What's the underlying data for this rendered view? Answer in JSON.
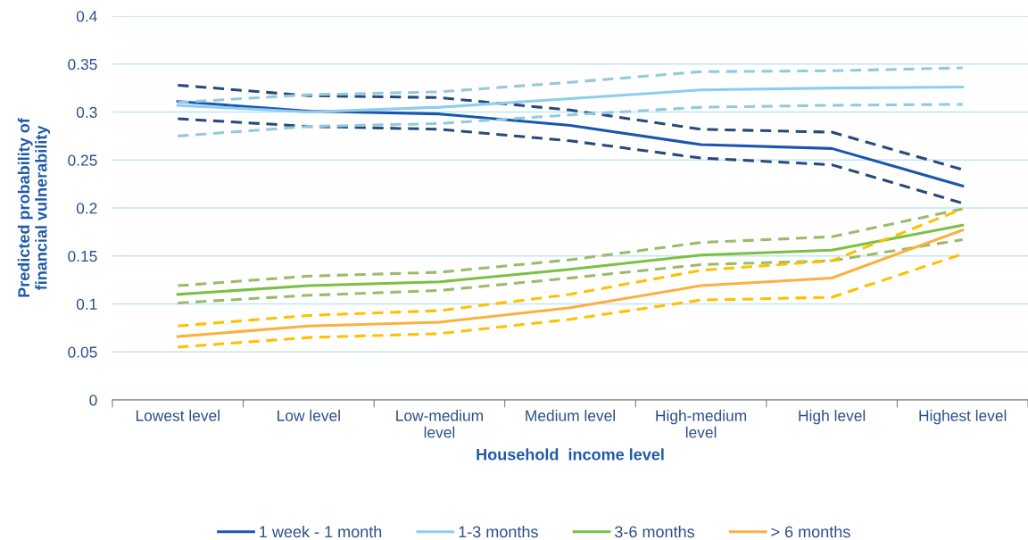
{
  "chart_data": {
    "type": "line",
    "xlabel": "Household  income level",
    "ylabel": "Predicted probability of\nfinancial vulnerability",
    "categories": [
      "Lowest level",
      "Low level",
      "Low-medium\nlevel",
      "Medium level",
      "High-medium\nlevel",
      "High level",
      "Highest level"
    ],
    "ylim": [
      0,
      0.4
    ],
    "yticks": [
      {
        "value": 0,
        "label": "0"
      },
      0.05,
      0.1,
      0.15,
      0.2,
      0.25,
      0.3,
      0.35,
      0.4
    ],
    "grid": "y",
    "legend": "bottom",
    "marker": "none",
    "series": [
      {
        "name": "1 week - 1 month",
        "color": "#1a56b0",
        "line_style": "solid",
        "values": [
          0.311,
          0.301,
          0.298,
          0.286,
          0.266,
          0.262,
          0.223
        ]
      },
      {
        "color": "#264a7a",
        "line_style": "dashed",
        "values": [
          0.328,
          0.317,
          0.315,
          0.302,
          0.282,
          0.279,
          0.24
        ]
      },
      {
        "color": "#264a7a",
        "line_style": "dashed",
        "values": [
          0.293,
          0.285,
          0.282,
          0.27,
          0.252,
          0.245,
          0.205
        ]
      },
      {
        "name": "1-3 months",
        "color": "#8dcdf0",
        "line_style": "solid",
        "values": [
          0.307,
          0.3,
          0.305,
          0.314,
          0.323,
          0.325,
          0.326
        ]
      },
      {
        "color": "#93c9dc",
        "line_style": "dashed",
        "values": [
          0.31,
          0.318,
          0.321,
          0.331,
          0.342,
          0.343,
          0.346
        ]
      },
      {
        "color": "#93c9dc",
        "line_style": "dashed",
        "values": [
          0.275,
          0.285,
          0.288,
          0.297,
          0.305,
          0.307,
          0.308
        ]
      },
      {
        "name": "3-6 months",
        "color": "#7ac143",
        "line_style": "solid",
        "values": [
          0.11,
          0.119,
          0.123,
          0.136,
          0.151,
          0.156,
          0.182
        ]
      },
      {
        "color": "#9bbb6a",
        "line_style": "dashed",
        "values": [
          0.119,
          0.129,
          0.133,
          0.146,
          0.164,
          0.17,
          0.199
        ]
      },
      {
        "color": "#9bbb6a",
        "line_style": "dashed",
        "values": [
          0.101,
          0.109,
          0.114,
          0.127,
          0.141,
          0.145,
          0.167
        ]
      },
      {
        "name": "> 6 months",
        "color": "#fbb040",
        "line_style": "solid",
        "values": [
          0.066,
          0.077,
          0.081,
          0.096,
          0.119,
          0.127,
          0.177
        ]
      },
      {
        "color": "#ffc000",
        "line_style": "dashed",
        "values": [
          0.077,
          0.088,
          0.093,
          0.11,
          0.135,
          0.145,
          0.199
        ]
      },
      {
        "color": "#ffc000",
        "line_style": "dashed",
        "values": [
          0.055,
          0.065,
          0.069,
          0.084,
          0.104,
          0.107,
          0.152
        ]
      }
    ]
  }
}
